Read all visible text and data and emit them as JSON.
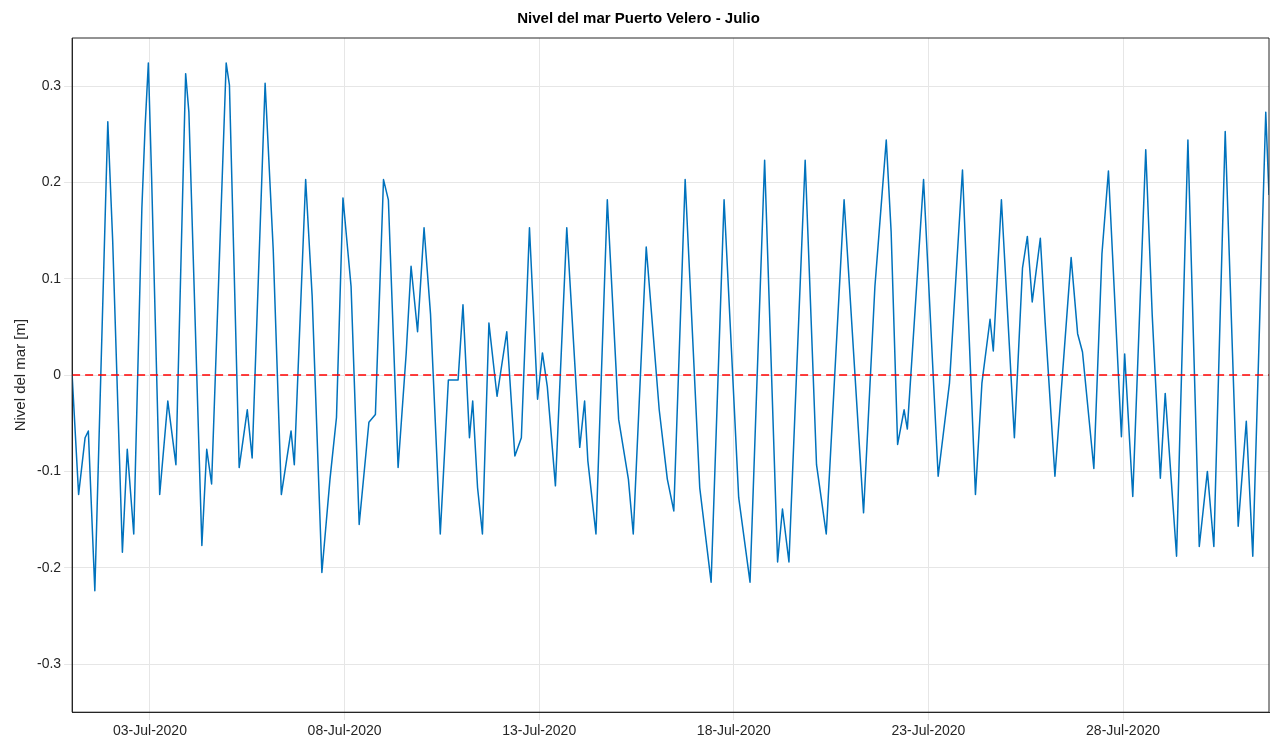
{
  "chart_data": {
    "type": "line",
    "title": "Nivel del mar Puerto Velero - Julio",
    "ylabel": "Nivel del mar [m]",
    "xlim": [
      "2020-07-01T00:00",
      "2020-07-31T18:00"
    ],
    "xticks": [
      {
        "value": "2020-07-03",
        "label": "03-Jul-2020"
      },
      {
        "value": "2020-07-08",
        "label": "08-Jul-2020"
      },
      {
        "value": "2020-07-13",
        "label": "13-Jul-2020"
      },
      {
        "value": "2020-07-18",
        "label": "18-Jul-2020"
      },
      {
        "value": "2020-07-23",
        "label": "23-Jul-2020"
      },
      {
        "value": "2020-07-28",
        "label": "28-Jul-2020"
      }
    ],
    "ylim": [
      -0.35,
      0.35
    ],
    "yticks": [
      -0.3,
      -0.2,
      -0.1,
      0,
      0.1,
      0.2,
      0.3
    ],
    "grid": true,
    "legend": false,
    "marker": "none",
    "line_style": "solid",
    "ref_lines": [
      {
        "axis": "y",
        "value": 0,
        "color": "#ff0000",
        "line_style": "dashed"
      }
    ],
    "series": [
      {
        "color": "#0072bd",
        "x": [
          "2020-07-01T00:00",
          "2020-07-01T04:00",
          "2020-07-01T08:00",
          "2020-07-01T10:00",
          "2020-07-01T14:00",
          "2020-07-01T22:00",
          "2020-07-02T01:00",
          "2020-07-02T07:00",
          "2020-07-02T10:00",
          "2020-07-02T14:00",
          "2020-07-02T19:00",
          "2020-07-02T21:00",
          "2020-07-02T23:00",
          "2020-07-03T01:00",
          "2020-07-03T06:00",
          "2020-07-03T11:00",
          "2020-07-03T16:00",
          "2020-07-03T22:00",
          "2020-07-04T00:00",
          "2020-07-04T08:00",
          "2020-07-04T11:00",
          "2020-07-04T14:00",
          "2020-07-04T23:00",
          "2020-07-05T01:00",
          "2020-07-05T07:00",
          "2020-07-05T12:00",
          "2020-07-05T15:00",
          "2020-07-05T23:00",
          "2020-07-06T04:00",
          "2020-07-06T09:00",
          "2020-07-06T15:00",
          "2020-07-06T17:00",
          "2020-07-07T00:00",
          "2020-07-07T04:00",
          "2020-07-07T10:00",
          "2020-07-07T15:00",
          "2020-07-07T19:00",
          "2020-07-07T23:00",
          "2020-07-08T04:00",
          "2020-07-08T09:00",
          "2020-07-08T15:00",
          "2020-07-08T19:00",
          "2020-07-09T00:00",
          "2020-07-09T03:00",
          "2020-07-09T09:00",
          "2020-07-09T14:00",
          "2020-07-09T17:00",
          "2020-07-09T21:00",
          "2020-07-10T01:00",
          "2020-07-10T05:00",
          "2020-07-10T11:00",
          "2020-07-10T16:00",
          "2020-07-10T22:00",
          "2020-07-11T01:00",
          "2020-07-11T05:00",
          "2020-07-11T07:00",
          "2020-07-11T10:00",
          "2020-07-11T13:00",
          "2020-07-11T17:00",
          "2020-07-11T22:00",
          "2020-07-12T04:00",
          "2020-07-12T09:00",
          "2020-07-12T13:00",
          "2020-07-12T18:00",
          "2020-07-12T23:00",
          "2020-07-13T02:00",
          "2020-07-13T05:00",
          "2020-07-13T10:00",
          "2020-07-13T17:00",
          "2020-07-14T01:00",
          "2020-07-14T04:00",
          "2020-07-14T06:00",
          "2020-07-14T11:00",
          "2020-07-14T18:00",
          "2020-07-15T01:00",
          "2020-07-15T07:00",
          "2020-07-15T10:00",
          "2020-07-15T18:00",
          "2020-07-16T02:00",
          "2020-07-16T07:00",
          "2020-07-16T11:00",
          "2020-07-16T18:00",
          "2020-07-17T03:00",
          "2020-07-17T10:00",
          "2020-07-17T18:00",
          "2020-07-18T03:00",
          "2020-07-18T10:00",
          "2020-07-18T19:00",
          "2020-07-19T03:00",
          "2020-07-19T06:00",
          "2020-07-19T10:00",
          "2020-07-19T20:00",
          "2020-07-20T03:00",
          "2020-07-20T09:00",
          "2020-07-20T20:00",
          "2020-07-21T08:00",
          "2020-07-21T15:00",
          "2020-07-21T22:00",
          "2020-07-22T01:00",
          "2020-07-22T05:00",
          "2020-07-22T09:00",
          "2020-07-22T11:00",
          "2020-07-22T21:00",
          "2020-07-23T06:00",
          "2020-07-23T13:00",
          "2020-07-23T21:00",
          "2020-07-24T05:00",
          "2020-07-24T09:00",
          "2020-07-24T14:00",
          "2020-07-24T16:00",
          "2020-07-24T21:00",
          "2020-07-25T05:00",
          "2020-07-25T10:00",
          "2020-07-25T13:00",
          "2020-07-25T16:00",
          "2020-07-25T21:00",
          "2020-07-26T00:00",
          "2020-07-26T06:00",
          "2020-07-26T16:00",
          "2020-07-26T20:00",
          "2020-07-26T23:00",
          "2020-07-27T06:00",
          "2020-07-27T11:00",
          "2020-07-27T15:00",
          "2020-07-27T23:00",
          "2020-07-28T01:00",
          "2020-07-28T06:00",
          "2020-07-28T14:00",
          "2020-07-28T18:00",
          "2020-07-28T23:00",
          "2020-07-29T02:00",
          "2020-07-29T09:00",
          "2020-07-29T16:00",
          "2020-07-29T23:00",
          "2020-07-30T04:00",
          "2020-07-30T08:00",
          "2020-07-30T15:00",
          "2020-07-30T23:00",
          "2020-07-31T04:00",
          "2020-07-31T08:00",
          "2020-07-31T16:00",
          "2020-07-31T18:00"
        ],
        "values": [
          0.0,
          -0.124,
          -0.065,
          -0.058,
          -0.224,
          0.263,
          0.14,
          -0.184,
          -0.077,
          -0.165,
          0.173,
          0.258,
          0.324,
          0.206,
          -0.124,
          -0.027,
          -0.093,
          0.313,
          0.273,
          -0.177,
          -0.077,
          -0.113,
          0.324,
          0.301,
          -0.096,
          -0.036,
          -0.086,
          0.303,
          0.13,
          -0.124,
          -0.058,
          -0.093,
          0.203,
          0.082,
          -0.205,
          -0.108,
          -0.044,
          0.184,
          0.092,
          -0.155,
          -0.049,
          -0.041,
          0.203,
          0.182,
          -0.096,
          0.023,
          0.113,
          0.045,
          0.153,
          0.063,
          -0.165,
          -0.005,
          -0.005,
          0.073,
          -0.065,
          -0.027,
          -0.117,
          -0.165,
          0.054,
          -0.022,
          0.045,
          -0.084,
          -0.065,
          0.153,
          -0.025,
          0.023,
          -0.012,
          -0.115,
          0.153,
          -0.075,
          -0.027,
          -0.089,
          -0.165,
          0.182,
          -0.046,
          -0.108,
          -0.165,
          0.133,
          -0.036,
          -0.108,
          -0.141,
          0.203,
          -0.117,
          -0.215,
          0.182,
          -0.127,
          -0.215,
          0.223,
          -0.194,
          -0.139,
          -0.194,
          0.223,
          -0.093,
          -0.165,
          0.182,
          -0.143,
          0.092,
          0.244,
          0.149,
          -0.072,
          -0.036,
          -0.056,
          0.203,
          -0.105,
          -0.008,
          0.213,
          -0.124,
          -0.008,
          0.058,
          0.025,
          0.182,
          -0.065,
          0.111,
          0.144,
          0.076,
          0.142,
          0.054,
          -0.105,
          0.122,
          0.043,
          0.024,
          -0.097,
          0.126,
          0.212,
          -0.064,
          0.022,
          -0.126,
          0.234,
          0.062,
          -0.107,
          -0.019,
          -0.188,
          0.244,
          -0.178,
          -0.1,
          -0.178,
          0.253,
          -0.157,
          -0.048,
          -0.188,
          0.273,
          0.187
        ]
      }
    ]
  }
}
